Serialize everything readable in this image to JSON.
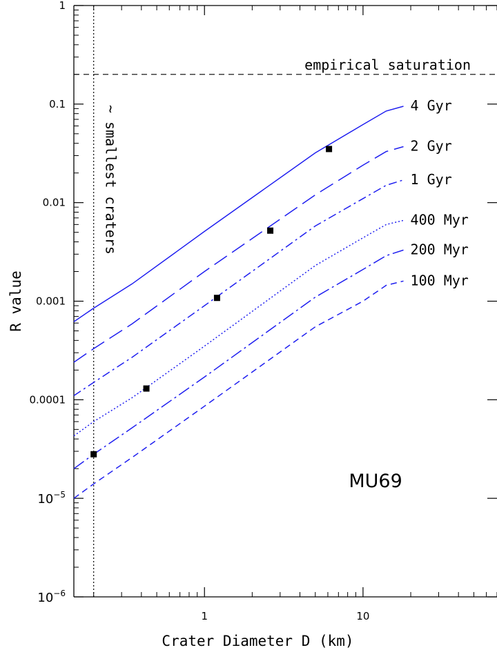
{
  "chart_data": {
    "type": "line",
    "xlabel": "Crater Diameter D (km)",
    "ylabel": "R value",
    "xscale": "log",
    "yscale": "log",
    "xlim": [
      0.15,
      70
    ],
    "ylim": [
      1e-06,
      1
    ],
    "x_tick_labels": [
      {
        "value": 1,
        "label": "1"
      },
      {
        "value": 10,
        "label": "10"
      }
    ],
    "y_tick_labels": [
      {
        "value": 1,
        "label": "1"
      },
      {
        "value": 0.1,
        "label": "0.1"
      },
      {
        "value": 0.01,
        "label": "0.01"
      },
      {
        "value": 0.001,
        "label": "0.001"
      },
      {
        "value": 0.0001,
        "label": "0.0001"
      },
      {
        "value": 1e-05,
        "base": "10",
        "exp": "−5"
      },
      {
        "value": 1e-06,
        "base": "10",
        "exp": "−6"
      }
    ],
    "grid": false,
    "series": [
      {
        "name": "4 Gyr",
        "style": "solid",
        "x": [
          0.15,
          0.2,
          0.35,
          1,
          5,
          10,
          14,
          18
        ],
        "y": [
          0.00062,
          0.00085,
          0.0015,
          0.0051,
          0.032,
          0.062,
          0.085,
          0.095
        ]
      },
      {
        "name": "2 Gyr",
        "style": "long-dash",
        "x": [
          0.15,
          0.2,
          0.35,
          1,
          5,
          10,
          14,
          18
        ],
        "y": [
          0.00024,
          0.00033,
          0.00059,
          0.002,
          0.012,
          0.024,
          0.033,
          0.037
        ]
      },
      {
        "name": "1 Gyr",
        "style": "dash-dot",
        "x": [
          0.15,
          0.2,
          0.35,
          1,
          5,
          10,
          14,
          18
        ],
        "y": [
          0.00011,
          0.00015,
          0.00027,
          0.0009,
          0.0058,
          0.011,
          0.015,
          0.017
        ]
      },
      {
        "name": "400 Myr",
        "style": "dotted",
        "x": [
          0.15,
          0.2,
          0.35,
          1,
          5,
          10,
          14,
          18
        ],
        "y": [
          4.3e-05,
          6e-05,
          0.000105,
          0.00035,
          0.0023,
          0.0044,
          0.006,
          0.0066
        ]
      },
      {
        "name": "200 Myr",
        "style": "dash-long-dot",
        "x": [
          0.15,
          0.2,
          0.35,
          1,
          5,
          10,
          14,
          18
        ],
        "y": [
          2e-05,
          2.8e-05,
          5.2e-05,
          0.00017,
          0.0011,
          0.0021,
          0.0029,
          0.0033
        ]
      },
      {
        "name": "100 Myr",
        "style": "short-dash",
        "x": [
          0.15,
          0.2,
          0.35,
          1,
          5,
          10,
          14,
          18
        ],
        "y": [
          1e-05,
          1.4e-05,
          2.6e-05,
          8.6e-05,
          0.00055,
          0.001,
          0.00145,
          0.0016
        ]
      }
    ],
    "markers": [
      {
        "x": 0.2,
        "y": 2.8e-05
      },
      {
        "x": 0.43,
        "y": 0.00013
      },
      {
        "x": 1.2,
        "y": 0.00108
      },
      {
        "x": 2.6,
        "y": 0.0052
      },
      {
        "x": 6.1,
        "y": 0.035
      }
    ],
    "reference_lines": [
      {
        "orientation": "horizontal",
        "value": 0.2,
        "style": "dashed",
        "label": "empirical saturation"
      },
      {
        "orientation": "vertical",
        "value": 0.2,
        "style": "dotted",
        "label": "~ smallest craters"
      }
    ],
    "annotations": [
      {
        "text": "MU69",
        "x": 12,
        "y": 1.3e-05
      }
    ],
    "colors": {
      "curves": "#1e1ef0",
      "axes": "#000000",
      "markers": "#000000"
    }
  }
}
